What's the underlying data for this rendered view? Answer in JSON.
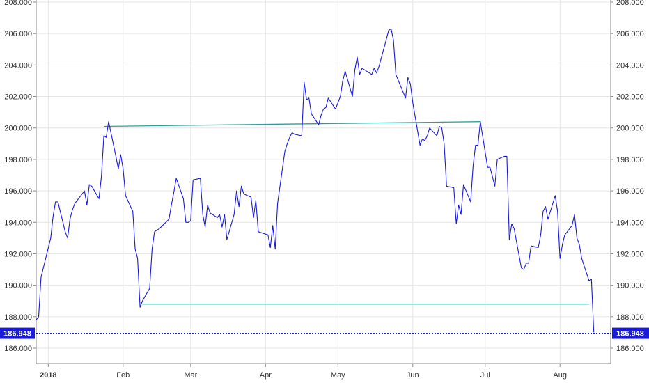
{
  "chart_data": {
    "type": "line",
    "title": "",
    "xlabel": "",
    "ylabel": "",
    "ylim": [
      185,
      208
    ],
    "xlim": [
      "2017-12-27",
      "2018-08-22"
    ],
    "grid": true,
    "y_ticks": [
      "186.000",
      "188.000",
      "190.000",
      "192.000",
      "194.000",
      "196.000",
      "198.000",
      "200.000",
      "202.000",
      "204.000",
      "206.000",
      "208.000"
    ],
    "x_ticks": [
      {
        "date": "2018-01-01",
        "label": "2018",
        "bold": true
      },
      {
        "date": "2018-02-01",
        "label": "Feb",
        "bold": false
      },
      {
        "date": "2018-03-01",
        "label": "Mar",
        "bold": false
      },
      {
        "date": "2018-04-01",
        "label": "Apr",
        "bold": false
      },
      {
        "date": "2018-05-01",
        "label": "May",
        "bold": false
      },
      {
        "date": "2018-06-01",
        "label": "Jun",
        "bold": false
      },
      {
        "date": "2018-07-01",
        "label": "Jul",
        "bold": false
      },
      {
        "date": "2018-08-01",
        "label": "Aug",
        "bold": false
      }
    ],
    "series": [
      {
        "color": "#1a1adb",
        "x": [
          "2017-12-27",
          "2017-12-28",
          "2017-12-29",
          "2018-01-02",
          "2018-01-03",
          "2018-01-04",
          "2018-01-05",
          "2018-01-08",
          "2018-01-09",
          "2018-01-10",
          "2018-01-11",
          "2018-01-12",
          "2018-01-16",
          "2018-01-17",
          "2018-01-18",
          "2018-01-19",
          "2018-01-22",
          "2018-01-23",
          "2018-01-24",
          "2018-01-25",
          "2018-01-26",
          "2018-01-29",
          "2018-01-30",
          "2018-01-31",
          "2018-02-01",
          "2018-02-02",
          "2018-02-05",
          "2018-02-06",
          "2018-02-07",
          "2018-02-08",
          "2018-02-09",
          "2018-02-12",
          "2018-02-13",
          "2018-02-14",
          "2018-02-15",
          "2018-02-16",
          "2018-02-20",
          "2018-02-21",
          "2018-02-22",
          "2018-02-23",
          "2018-02-26",
          "2018-02-27",
          "2018-02-28",
          "2018-03-01",
          "2018-03-02",
          "2018-03-05",
          "2018-03-06",
          "2018-03-07",
          "2018-03-08",
          "2018-03-09",
          "2018-03-12",
          "2018-03-13",
          "2018-03-14",
          "2018-03-15",
          "2018-03-16",
          "2018-03-19",
          "2018-03-20",
          "2018-03-21",
          "2018-03-22",
          "2018-03-23",
          "2018-03-26",
          "2018-03-27",
          "2018-03-28",
          "2018-03-29",
          "2018-04-02",
          "2018-04-03",
          "2018-04-04",
          "2018-04-05",
          "2018-04-06",
          "2018-04-09",
          "2018-04-10",
          "2018-04-11",
          "2018-04-12",
          "2018-04-13",
          "2018-04-16",
          "2018-04-17",
          "2018-04-18",
          "2018-04-19",
          "2018-04-20",
          "2018-04-23",
          "2018-04-24",
          "2018-04-25",
          "2018-04-26",
          "2018-04-27",
          "2018-04-30",
          "2018-05-01",
          "2018-05-02",
          "2018-05-03",
          "2018-05-04",
          "2018-05-07",
          "2018-05-08",
          "2018-05-09",
          "2018-05-10",
          "2018-05-11",
          "2018-05-14",
          "2018-05-15",
          "2018-05-16",
          "2018-05-17",
          "2018-05-18",
          "2018-05-21",
          "2018-05-22",
          "2018-05-23",
          "2018-05-24",
          "2018-05-25",
          "2018-05-29",
          "2018-05-30",
          "2018-05-31",
          "2018-06-01",
          "2018-06-04",
          "2018-06-05",
          "2018-06-06",
          "2018-06-07",
          "2018-06-08",
          "2018-06-11",
          "2018-06-12",
          "2018-06-13",
          "2018-06-14",
          "2018-06-15",
          "2018-06-18",
          "2018-06-19",
          "2018-06-20",
          "2018-06-21",
          "2018-06-22",
          "2018-06-25",
          "2018-06-26",
          "2018-06-27",
          "2018-06-28",
          "2018-06-29",
          "2018-07-02",
          "2018-07-03",
          "2018-07-05",
          "2018-07-06",
          "2018-07-09",
          "2018-07-10",
          "2018-07-11",
          "2018-07-12",
          "2018-07-13",
          "2018-07-16",
          "2018-07-17",
          "2018-07-18",
          "2018-07-19",
          "2018-07-20",
          "2018-07-23",
          "2018-07-24",
          "2018-07-25",
          "2018-07-26",
          "2018-07-27",
          "2018-07-30",
          "2018-07-31",
          "2018-08-01",
          "2018-08-02",
          "2018-08-03",
          "2018-08-06",
          "2018-08-07",
          "2018-08-08",
          "2018-08-09",
          "2018-08-10",
          "2018-08-13",
          "2018-08-14",
          "2018-08-15"
        ],
        "values": [
          187.8,
          188.0,
          190.5,
          193.0,
          194.4,
          195.3,
          195.3,
          193.4,
          193.0,
          194.2,
          194.8,
          195.2,
          196.0,
          195.1,
          196.4,
          196.3,
          195.5,
          196.9,
          199.5,
          199.4,
          200.4,
          198.2,
          197.4,
          198.3,
          197.4,
          195.7,
          194.7,
          192.3,
          191.7,
          188.6,
          189.0,
          189.8,
          192.3,
          193.4,
          193.5,
          193.6,
          194.2,
          195.1,
          195.9,
          196.8,
          195.5,
          194.0,
          194.0,
          194.1,
          196.7,
          196.8,
          194.5,
          193.7,
          195.1,
          194.6,
          194.3,
          194.5,
          193.7,
          194.5,
          192.9,
          194.5,
          196.0,
          195.0,
          196.3,
          195.8,
          195.6,
          194.3,
          195.4,
          193.4,
          193.2,
          192.4,
          193.8,
          192.3,
          195.2,
          198.5,
          199.0,
          199.4,
          199.7,
          199.6,
          199.5,
          202.9,
          201.8,
          201.9,
          200.9,
          200.2,
          200.8,
          201.2,
          201.3,
          201.9,
          201.2,
          201.6,
          202.0,
          203.0,
          203.6,
          202.0,
          203.7,
          204.5,
          203.4,
          203.8,
          203.5,
          203.4,
          203.8,
          203.5,
          203.9,
          205.6,
          206.2,
          206.3,
          205.6,
          203.4,
          201.9,
          203.2,
          202.8,
          201.6,
          198.9,
          199.3,
          199.2,
          199.5,
          200.0,
          199.5,
          200.1,
          200.0,
          199.0,
          196.3,
          196.2,
          193.9,
          195.1,
          194.5,
          196.4,
          195.3,
          197.6,
          198.9,
          198.9,
          200.4,
          197.5,
          197.5,
          196.3,
          198.0,
          198.2,
          198.2,
          192.9,
          193.9,
          193.6,
          191.1,
          191.0,
          191.4,
          191.4,
          192.5,
          192.4,
          193.2,
          194.7,
          195.0,
          194.2,
          195.7,
          194.7,
          191.7,
          192.6,
          193.2,
          193.8,
          194.5,
          193.0,
          192.6,
          191.7,
          190.3,
          190.4,
          187.0
        ]
      }
    ],
    "trendlines": [
      {
        "color": "#2aa198",
        "x": [
          "2018-01-24",
          "2018-06-29"
        ],
        "y": [
          200.1,
          200.4
        ]
      },
      {
        "color": "#2aa198",
        "x": [
          "2018-02-09",
          "2018-08-13"
        ],
        "y": [
          188.8,
          188.8
        ]
      }
    ],
    "last_value": {
      "value": 186.948,
      "label": "186.948",
      "badge_color": "#1a1adb",
      "line_color": "#1a1adb"
    }
  }
}
